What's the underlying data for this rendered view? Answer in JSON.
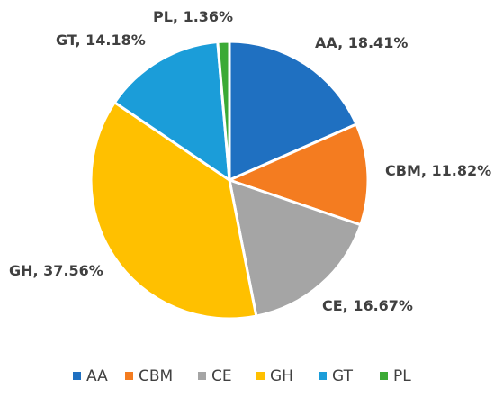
{
  "chart_data": {
    "type": "pie",
    "title": "",
    "categories": [
      "AA",
      "CBM",
      "CE",
      "GH",
      "GT",
      "PL"
    ],
    "values": [
      18.41,
      11.82,
      16.67,
      37.56,
      14.18,
      1.36
    ],
    "colors": [
      "#1F70C1",
      "#F47C20",
      "#A5A5A5",
      "#FFC000",
      "#1B9DD9",
      "#3BAA35"
    ],
    "data_labels": [
      "AA, 18.41%",
      "CBM, 11.82%",
      "CE, 16.67%",
      "GH, 37.56%",
      "GT, 14.18%",
      "PL, 1.36%"
    ],
    "legend": {
      "placement": "bottom",
      "entries": [
        "AA",
        "CBM",
        "CE",
        "GH",
        "GT",
        "PL"
      ]
    }
  }
}
